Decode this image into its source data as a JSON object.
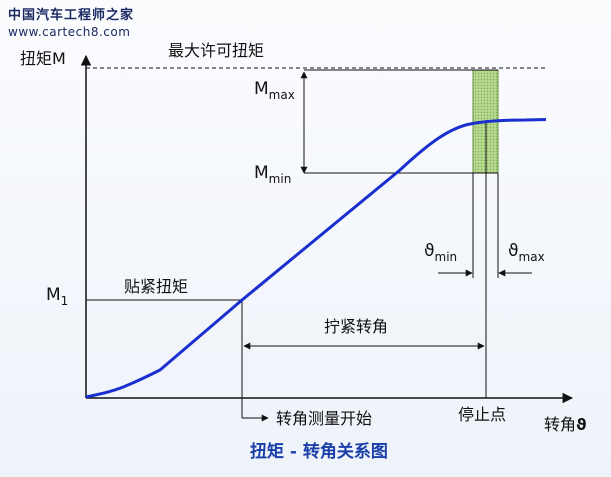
{
  "watermark": {
    "line1": "中国汽车工程师之家",
    "line2": "www.cartech8.com"
  },
  "diagram": {
    "caption": "扭矩 - 转角关系图",
    "y_axis_label": "扭矩M",
    "x_axis_label": "转角",
    "x_axis_symbol": "ϑ",
    "max_allowed_torque": "最大许可扭矩",
    "m_max_base": "M",
    "m_max_sub": "max",
    "m_min_base": "M",
    "m_min_sub": "min",
    "m1_base": "M",
    "m1_sub": "1",
    "snug_torque": "贴紧扭矩",
    "tightening_angle": "拧紧转角",
    "angle_measure_start": "转角测量开始",
    "stop_point": "停止点",
    "theta_min_base": "ϑ",
    "theta_min_sub": "min",
    "theta_max_base": "ϑ",
    "theta_max_sub": "max"
  },
  "colors": {
    "curve": "#1a2fd0",
    "window_fill": "#a8d080",
    "caption": "#1a3fa8"
  }
}
